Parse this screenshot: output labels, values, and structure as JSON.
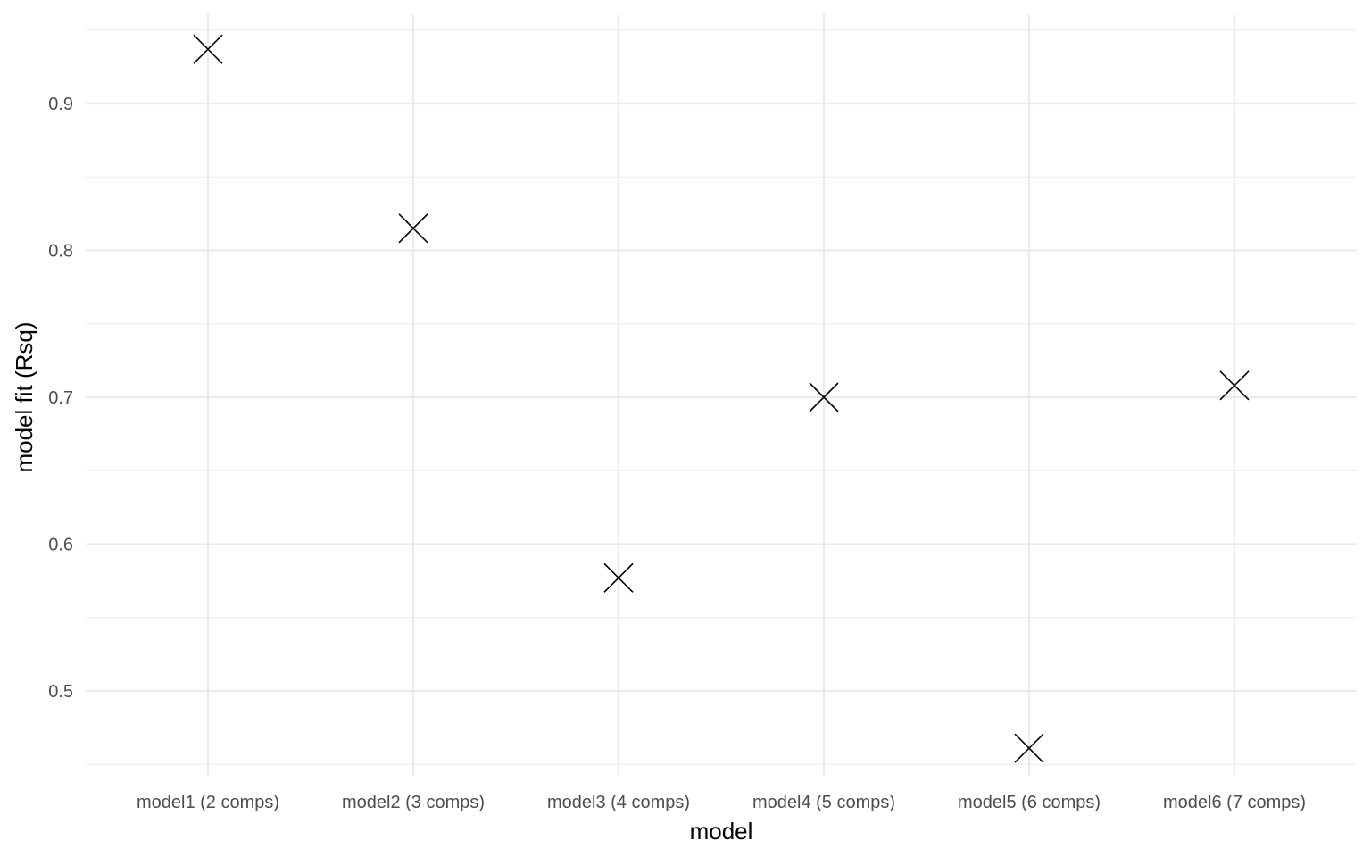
{
  "chart_data": {
    "type": "scatter",
    "xlabel": "model",
    "ylabel": "model fit (Rsq)",
    "categories": [
      "model1 (2 comps)",
      "model2 (3 comps)",
      "model3 (4 comps)",
      "model4 (5 comps)",
      "model5 (6 comps)",
      "model6 (7 comps)"
    ],
    "values": [
      0.937,
      0.815,
      0.577,
      0.7,
      0.461,
      0.708
    ],
    "ylim": [
      0.45,
      0.95
    ],
    "yticks": [
      0.5,
      0.6,
      0.7,
      0.8,
      0.9
    ],
    "ytick_labels": [
      "0.5",
      "0.6",
      "0.7",
      "0.8",
      "0.9"
    ],
    "point_shape": "x",
    "point_color": "#000000",
    "grid": true,
    "legend": "none"
  }
}
